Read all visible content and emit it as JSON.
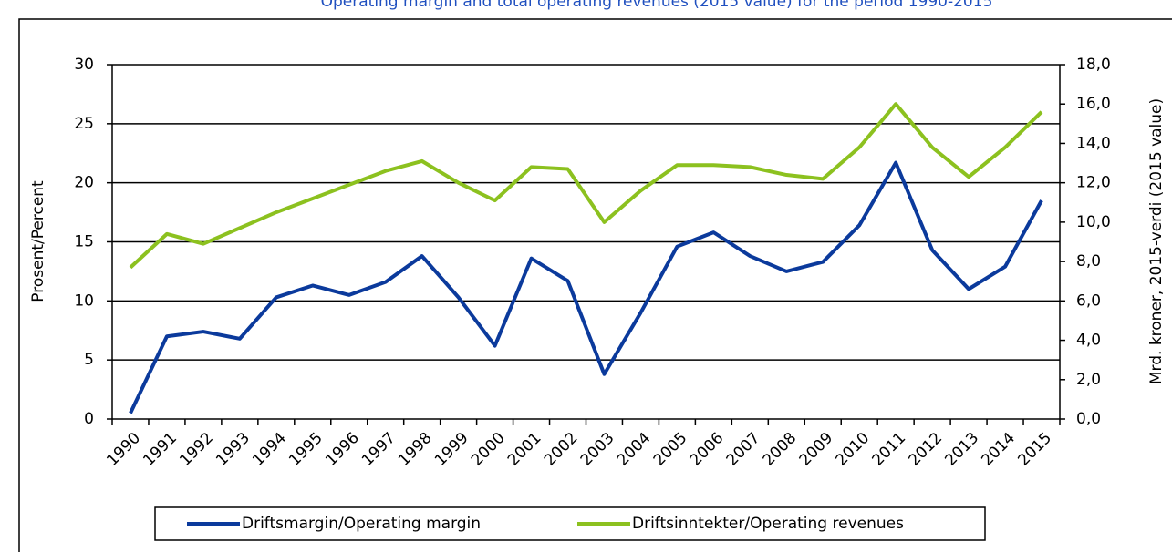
{
  "chart_data": {
    "type": "line",
    "title": "Operating margin and total operating revenues (2015 value) for the period 1990-2015",
    "ylabel": "Prosent/Percent",
    "y2label": "Mrd. kroner, 2015-verdi (2015 value)",
    "categories": [
      "1990",
      "1991",
      "1992",
      "1993",
      "1994",
      "1995",
      "1996",
      "1997",
      "1998",
      "1999",
      "2000",
      "2001",
      "2002",
      "2003",
      "2004",
      "2005",
      "2006",
      "2007",
      "2008",
      "2009",
      "2010",
      "2011",
      "2012",
      "2013",
      "2014",
      "2015"
    ],
    "series": [
      {
        "name": "Driftsmargin/Operating margin",
        "color": "#0b3a9c",
        "axis": "y",
        "values": [
          0.5,
          7.0,
          7.4,
          6.8,
          10.3,
          11.3,
          10.5,
          11.6,
          13.8,
          10.3,
          6.2,
          13.6,
          11.7,
          3.8,
          9.0,
          14.6,
          15.8,
          13.8,
          12.5,
          13.3,
          16.4,
          21.7,
          14.3,
          11.0,
          12.9,
          18.5
        ]
      },
      {
        "name": "Driftsinntekter/Operating revenues",
        "color": "#8cc11f",
        "axis": "y2",
        "values": [
          7.7,
          9.4,
          8.9,
          9.7,
          10.5,
          11.2,
          11.9,
          12.6,
          13.1,
          12.0,
          11.1,
          12.8,
          12.7,
          10.0,
          11.6,
          12.9,
          12.9,
          12.8,
          12.4,
          12.2,
          13.8,
          16.0,
          13.8,
          12.3,
          13.8,
          15.6
        ]
      }
    ],
    "ylim": [
      0,
      30
    ],
    "yticks": [
      0,
      5,
      10,
      15,
      20,
      25,
      30
    ],
    "y2lim": [
      0,
      18
    ],
    "y2ticks": [
      {
        "value": 0,
        "label": "0,0"
      },
      {
        "value": 2,
        "label": "2,0"
      },
      {
        "value": 4,
        "label": "4,0"
      },
      {
        "value": 6,
        "label": "6,0"
      },
      {
        "value": 8,
        "label": "8,0"
      },
      {
        "value": 10,
        "label": "10,0"
      },
      {
        "value": 12,
        "label": "12,0"
      },
      {
        "value": 14,
        "label": "14,0"
      },
      {
        "value": 16,
        "label": "16,0"
      },
      {
        "value": 18,
        "label": "18,0"
      }
    ],
    "grid": true,
    "legend": "bottom"
  }
}
